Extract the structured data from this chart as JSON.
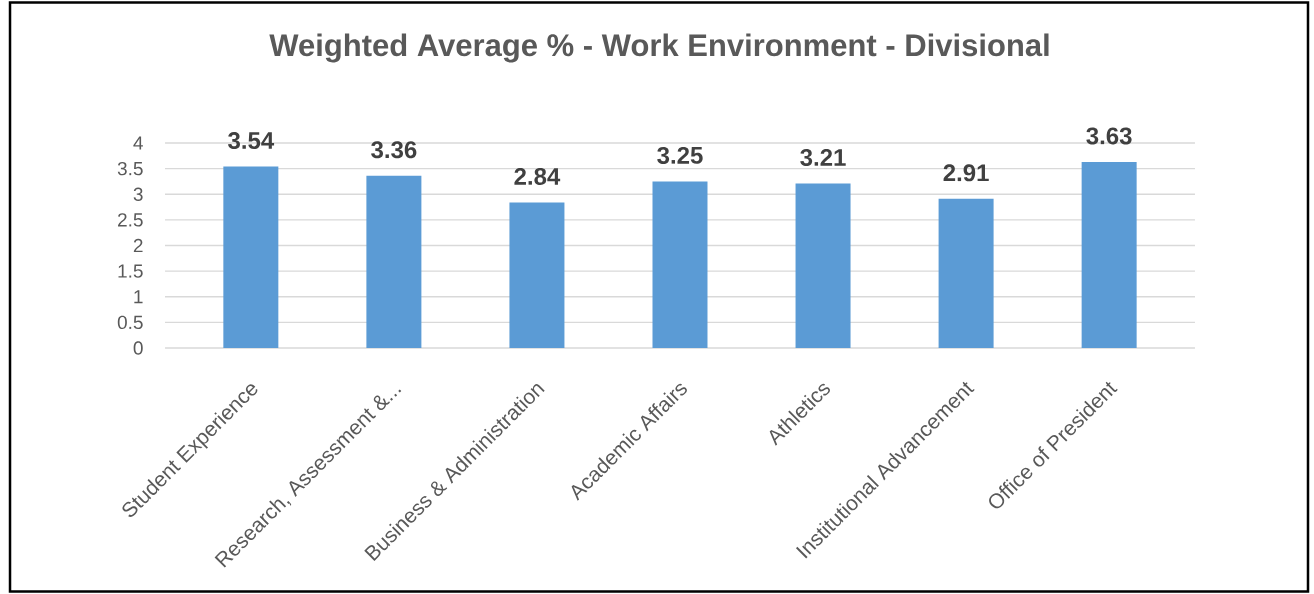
{
  "chart_data": {
    "type": "bar",
    "title": "Weighted Average % - Work Environment - Divisional",
    "categories": [
      "Student Experience",
      "Research, Assessment &...",
      "Business & Administration",
      "Academic Affairs",
      "Athletics",
      "Institutional Advancement",
      "Office of President"
    ],
    "values": [
      3.54,
      3.36,
      2.84,
      3.25,
      3.21,
      2.91,
      3.63
    ],
    "color": "#5b9bd5",
    "ylim": [
      0,
      4
    ],
    "yticks": [
      0,
      0.5,
      1,
      1.5,
      2,
      2.5,
      3,
      3.5,
      4
    ],
    "grid": "y",
    "data_labels": true
  }
}
